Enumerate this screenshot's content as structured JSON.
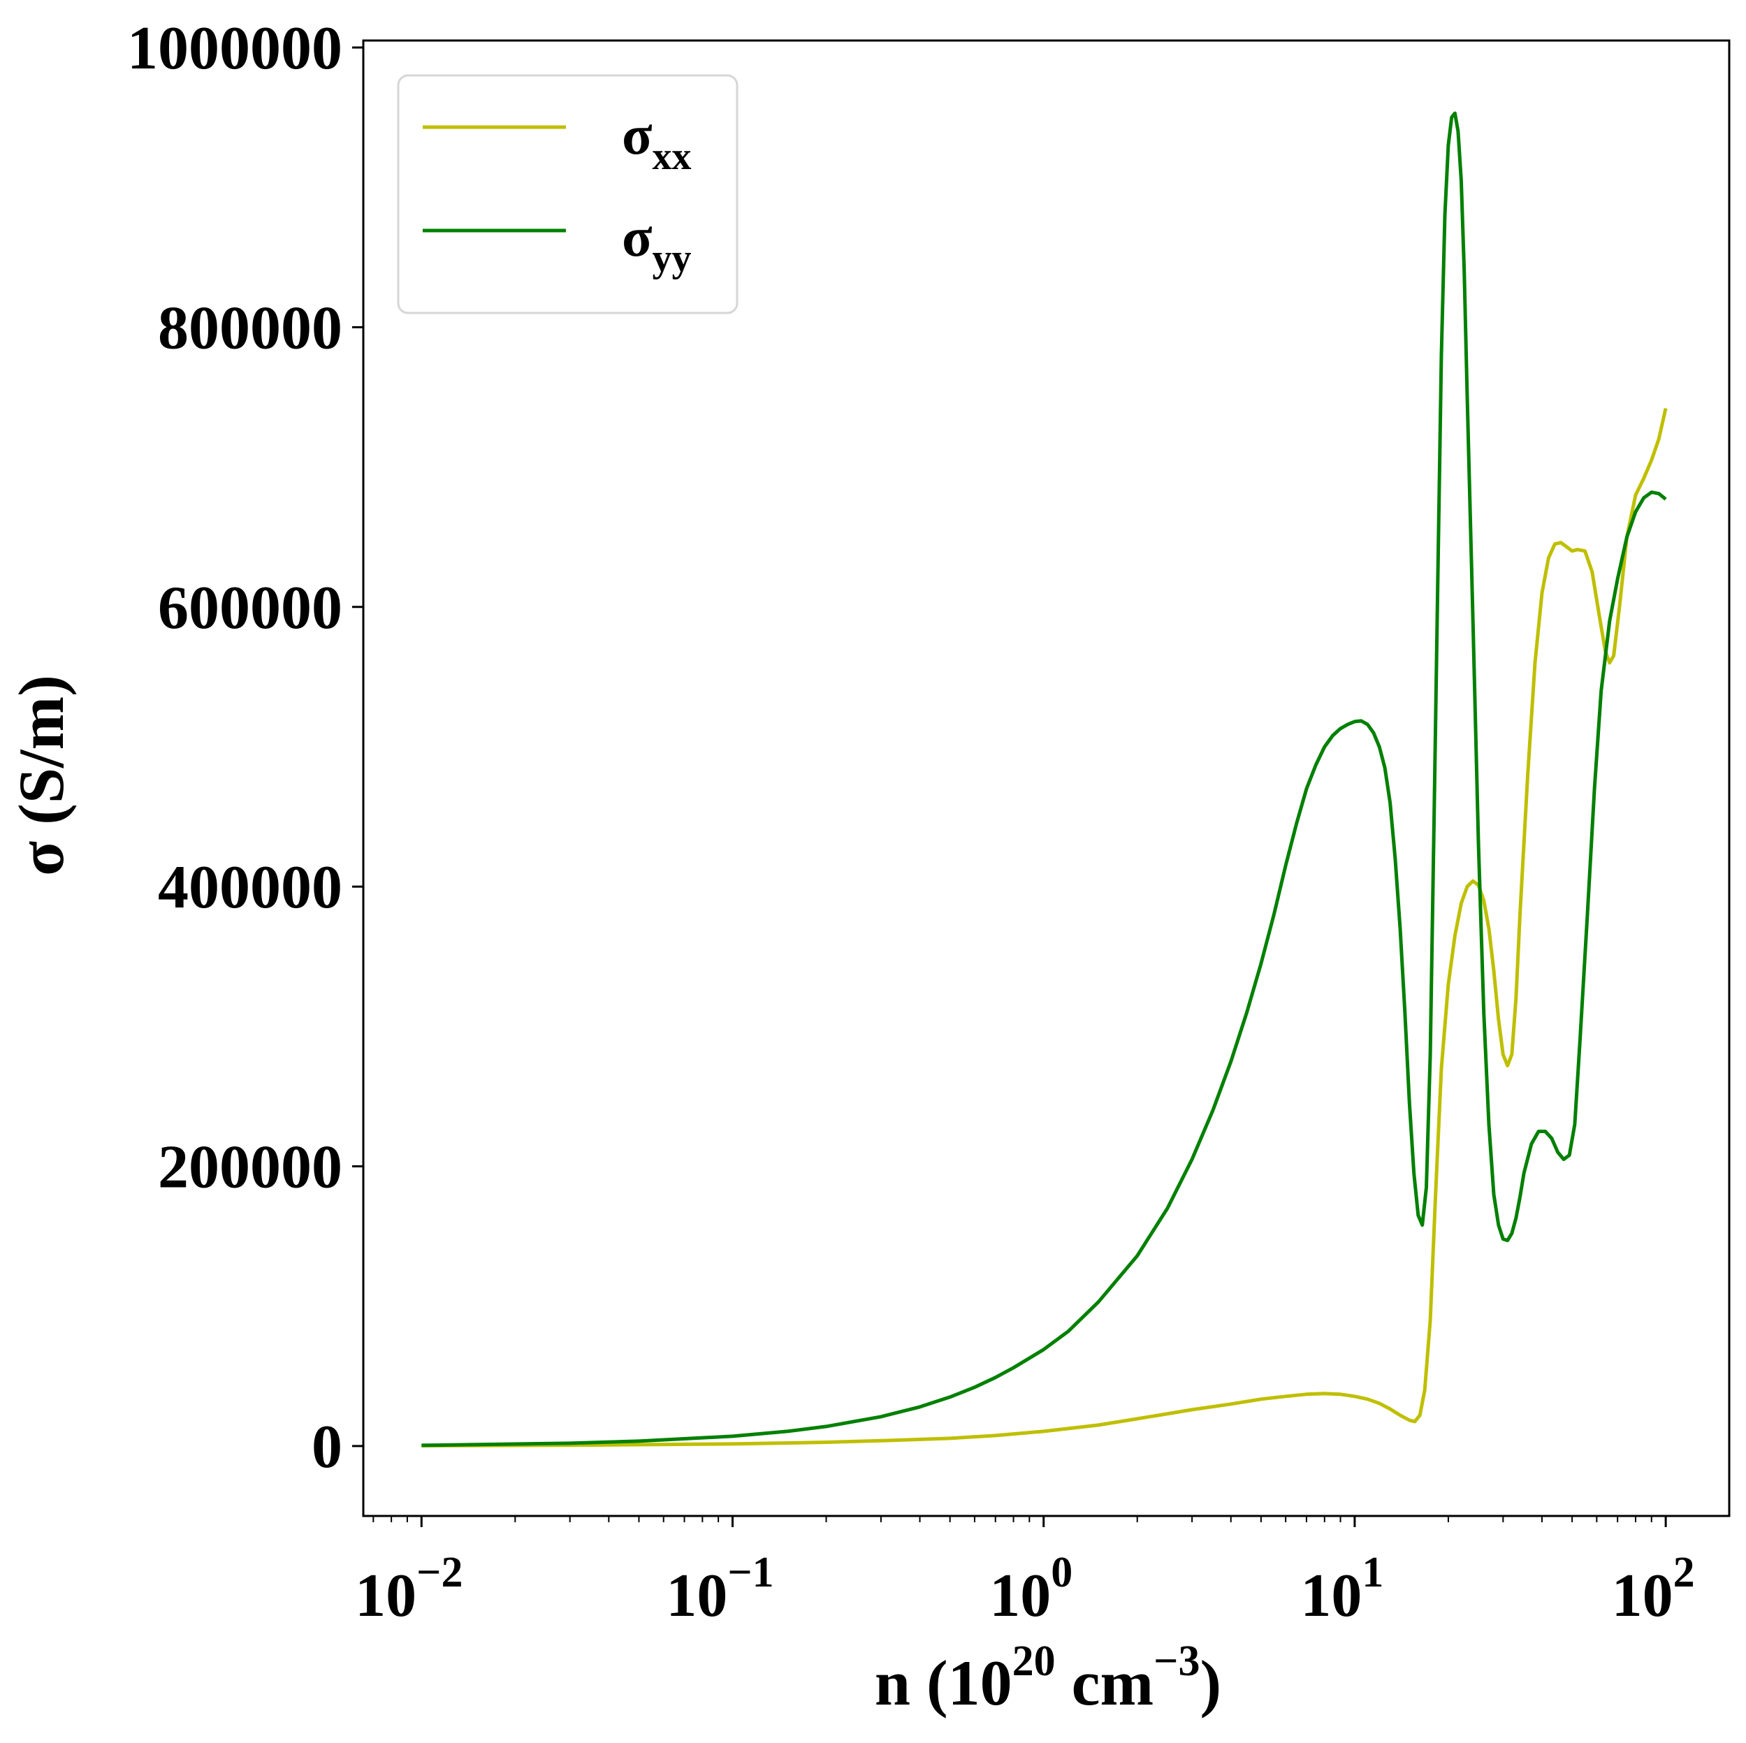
{
  "chart_data": {
    "type": "line",
    "title": "",
    "xlabel": {
      "main": "n (10",
      "sup1": "20",
      "mid": " cm",
      "sup2": "−3",
      "end": ")"
    },
    "ylabel": "σ (S/m)",
    "xscale": "log",
    "xlim": [
      0.0065,
      160
    ],
    "ylim": [
      -50000,
      1005000
    ],
    "grid": false,
    "legend_position": "top-left",
    "x_ticks": [
      {
        "base": "10",
        "exp": "−2",
        "value": 0.01
      },
      {
        "base": "10",
        "exp": "−1",
        "value": 0.1
      },
      {
        "base": "10",
        "exp": "0",
        "value": 1
      },
      {
        "base": "10",
        "exp": "1",
        "value": 10
      },
      {
        "base": "10",
        "exp": "2",
        "value": 100
      }
    ],
    "y_ticks": [
      {
        "label": "0",
        "value": 0
      },
      {
        "label": "200000",
        "value": 200000
      },
      {
        "label": "400000",
        "value": 400000
      },
      {
        "label": "600000",
        "value": 600000
      },
      {
        "label": "800000",
        "value": 800000
      },
      {
        "label": "1000000",
        "value": 1000000
      }
    ],
    "series": [
      {
        "name": "σ",
        "subscript": "xx",
        "color": "#bfbf00",
        "points": [
          [
            0.01,
            200
          ],
          [
            0.03,
            600
          ],
          [
            0.1,
            1500
          ],
          [
            0.2,
            2700
          ],
          [
            0.3,
            3800
          ],
          [
            0.5,
            5500
          ],
          [
            0.7,
            7500
          ],
          [
            1.0,
            10500
          ],
          [
            1.5,
            15000
          ],
          [
            2.0,
            19500
          ],
          [
            3.0,
            26000
          ],
          [
            4.0,
            30000
          ],
          [
            5.0,
            33500
          ],
          [
            6.0,
            35500
          ],
          [
            7.0,
            37000
          ],
          [
            8.0,
            37500
          ],
          [
            9.0,
            37000
          ],
          [
            10.0,
            35500
          ],
          [
            11.0,
            33500
          ],
          [
            12.0,
            30500
          ],
          [
            13.0,
            26500
          ],
          [
            14.0,
            22000
          ],
          [
            15.0,
            18500
          ],
          [
            15.6,
            17500
          ],
          [
            16.2,
            22000
          ],
          [
            16.8,
            40000
          ],
          [
            17.5,
            90000
          ],
          [
            18.2,
            180000
          ],
          [
            19.0,
            270000
          ],
          [
            20.0,
            330000
          ],
          [
            21.0,
            365000
          ],
          [
            22.0,
            388000
          ],
          [
            23.0,
            400000
          ],
          [
            24.0,
            404000
          ],
          [
            25.0,
            401000
          ],
          [
            26.0,
            390000
          ],
          [
            27.0,
            370000
          ],
          [
            28.0,
            340000
          ],
          [
            29.0,
            305000
          ],
          [
            30.0,
            280000
          ],
          [
            31.0,
            272000
          ],
          [
            32.0,
            280000
          ],
          [
            33.0,
            320000
          ],
          [
            34.0,
            380000
          ],
          [
            36.0,
            480000
          ],
          [
            38.0,
            560000
          ],
          [
            40.0,
            610000
          ],
          [
            42.0,
            635000
          ],
          [
            44.0,
            645000
          ],
          [
            46.0,
            646000
          ],
          [
            48.0,
            643000
          ],
          [
            50.0,
            640000
          ],
          [
            52.0,
            641000
          ],
          [
            55.0,
            640000
          ],
          [
            58.0,
            625000
          ],
          [
            61.0,
            595000
          ],
          [
            64.0,
            568000
          ],
          [
            66.0,
            560000
          ],
          [
            68.0,
            565000
          ],
          [
            71.0,
            600000
          ],
          [
            75.0,
            650000
          ],
          [
            80.0,
            680000
          ],
          [
            85.0,
            692000
          ],
          [
            90.0,
            705000
          ],
          [
            95.0,
            720000
          ],
          [
            100.0,
            742000
          ]
        ]
      },
      {
        "name": "σ",
        "subscript": "yy",
        "color": "#008000",
        "points": [
          [
            0.01,
            500
          ],
          [
            0.03,
            2000
          ],
          [
            0.05,
            3500
          ],
          [
            0.1,
            7000
          ],
          [
            0.15,
            10500
          ],
          [
            0.2,
            14000
          ],
          [
            0.3,
            21000
          ],
          [
            0.4,
            28000
          ],
          [
            0.5,
            35000
          ],
          [
            0.6,
            42000
          ],
          [
            0.7,
            49000
          ],
          [
            0.8,
            56000
          ],
          [
            1.0,
            69000
          ],
          [
            1.2,
            82000
          ],
          [
            1.5,
            103000
          ],
          [
            2.0,
            136000
          ],
          [
            2.5,
            170000
          ],
          [
            3.0,
            205000
          ],
          [
            3.5,
            240000
          ],
          [
            4.0,
            275000
          ],
          [
            4.5,
            310000
          ],
          [
            5.0,
            345000
          ],
          [
            5.5,
            380000
          ],
          [
            6.0,
            415000
          ],
          [
            6.5,
            445000
          ],
          [
            7.0,
            470000
          ],
          [
            7.5,
            487000
          ],
          [
            8.0,
            500000
          ],
          [
            8.5,
            508000
          ],
          [
            9.0,
            513000
          ],
          [
            9.5,
            516000
          ],
          [
            10.0,
            518000
          ],
          [
            10.5,
            518500
          ],
          [
            11.0,
            516000
          ],
          [
            11.5,
            510000
          ],
          [
            12.0,
            500000
          ],
          [
            12.5,
            485000
          ],
          [
            13.0,
            460000
          ],
          [
            13.5,
            420000
          ],
          [
            14.0,
            370000
          ],
          [
            14.5,
            310000
          ],
          [
            15.0,
            245000
          ],
          [
            15.5,
            195000
          ],
          [
            16.0,
            165000
          ],
          [
            16.5,
            158000
          ],
          [
            17.0,
            185000
          ],
          [
            17.5,
            280000
          ],
          [
            18.0,
            450000
          ],
          [
            18.5,
            620000
          ],
          [
            19.0,
            780000
          ],
          [
            19.5,
            880000
          ],
          [
            20.0,
            930000
          ],
          [
            20.5,
            950000
          ],
          [
            21.0,
            953000
          ],
          [
            21.5,
            940000
          ],
          [
            22.0,
            905000
          ],
          [
            22.5,
            840000
          ],
          [
            23.0,
            750000
          ],
          [
            24.0,
            590000
          ],
          [
            25.0,
            430000
          ],
          [
            26.0,
            310000
          ],
          [
            27.0,
            230000
          ],
          [
            28.0,
            180000
          ],
          [
            29.0,
            158000
          ],
          [
            30.0,
            148000
          ],
          [
            31.0,
            147000
          ],
          [
            32.0,
            152000
          ],
          [
            33.0,
            163000
          ],
          [
            34.0,
            178000
          ],
          [
            35.0,
            195000
          ],
          [
            37.0,
            216000
          ],
          [
            39.0,
            225000
          ],
          [
            41.0,
            225000
          ],
          [
            43.0,
            220000
          ],
          [
            45.0,
            210000
          ],
          [
            47.0,
            205000
          ],
          [
            49.0,
            208000
          ],
          [
            51.0,
            230000
          ],
          [
            53.0,
            290000
          ],
          [
            56.0,
            380000
          ],
          [
            59.0,
            470000
          ],
          [
            62.0,
            540000
          ],
          [
            66.0,
            590000
          ],
          [
            70.0,
            620000
          ],
          [
            75.0,
            650000
          ],
          [
            80.0,
            668000
          ],
          [
            85.0,
            678000
          ],
          [
            90.0,
            682000
          ],
          [
            95.0,
            681000
          ],
          [
            100.0,
            677000
          ]
        ]
      }
    ]
  }
}
